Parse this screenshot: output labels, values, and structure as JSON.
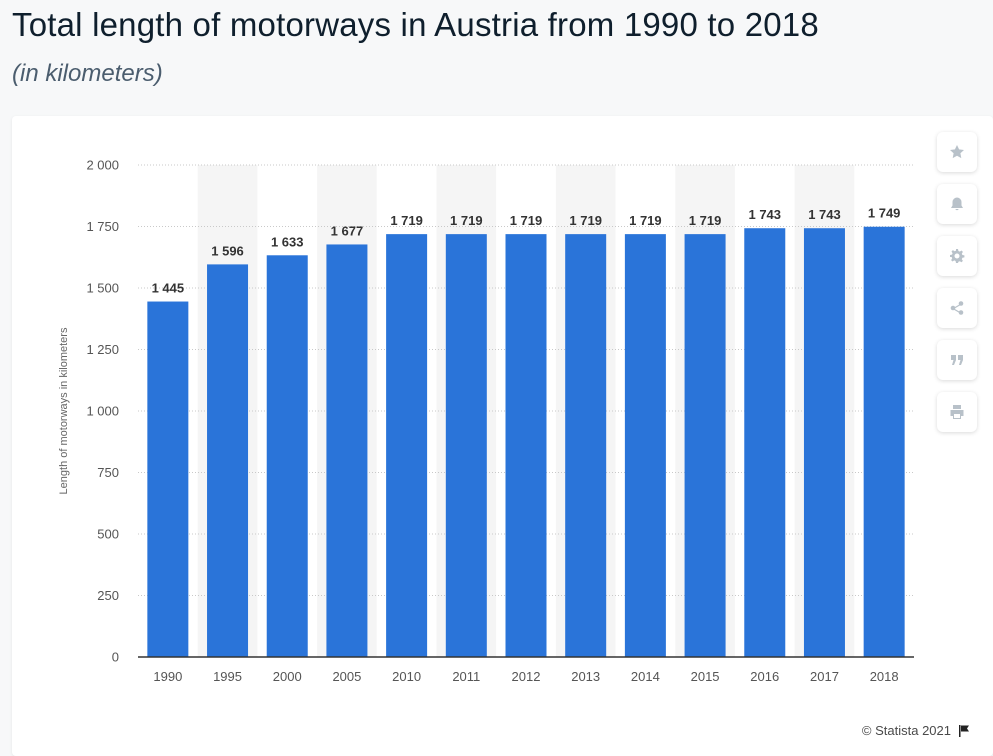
{
  "header": {
    "title": "Total length of motorways in Austria from 1990 to 2018",
    "subtitle": "(in kilometers)"
  },
  "footer": {
    "credit": "© Statista 2021"
  },
  "toolbar": {
    "items": [
      "star-icon",
      "bell-icon",
      "gear-icon",
      "share-icon",
      "quote-icon",
      "print-icon"
    ]
  },
  "colors": {
    "bar": "#2a74d9",
    "band": "#f5f5f5",
    "grid": "#c9c9c9"
  },
  "chart_data": {
    "type": "bar",
    "title": "Total length of motorways in Austria from 1990 to 2018",
    "subtitle": "(in kilometers)",
    "xlabel": "",
    "ylabel": "Length of motorways in kilometers",
    "categories": [
      "1990",
      "1995",
      "2000",
      "2005",
      "2010",
      "2011",
      "2012",
      "2013",
      "2014",
      "2015",
      "2016",
      "2017",
      "2018"
    ],
    "values": [
      1445,
      1596,
      1633,
      1677,
      1719,
      1719,
      1719,
      1719,
      1719,
      1719,
      1743,
      1743,
      1749
    ],
    "value_labels": [
      "1 445",
      "1 596",
      "1 633",
      "1 677",
      "1 719",
      "1 719",
      "1 719",
      "1 719",
      "1 719",
      "1 719",
      "1 743",
      "1 743",
      "1 749"
    ],
    "ylim": [
      0,
      2000
    ],
    "yticks": [
      0,
      250,
      500,
      750,
      1000,
      1250,
      1500,
      1750,
      2000
    ],
    "ytick_labels": [
      "0",
      "250",
      "500",
      "750",
      "1 000",
      "1 250",
      "1 500",
      "1 750",
      "2 000"
    ],
    "grid": true,
    "legend": "none"
  }
}
